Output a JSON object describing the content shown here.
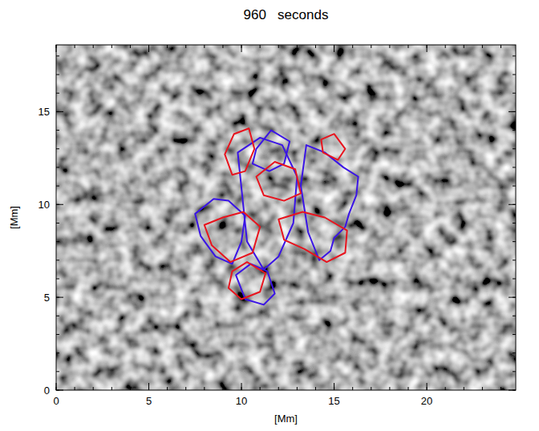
{
  "chart_data": {
    "type": "contour",
    "title": "960   seconds",
    "x_label": "[Mm]",
    "y_label": "[Mm]",
    "xlim": [
      0,
      24.8
    ],
    "ylim": [
      0,
      18.6
    ],
    "xticks": [
      0,
      5,
      10,
      15,
      20
    ],
    "yticks": [
      0,
      5,
      10,
      15
    ],
    "series": [
      {
        "color": "#3a14e6",
        "line_style": "solid",
        "x": [
          13.5,
          14.5,
          15.5,
          16.3,
          16.2,
          15.8,
          15.6,
          15.0,
          14.8,
          14.2,
          13.6,
          13.2
        ],
        "y": [
          13.2,
          12.8,
          12.0,
          11.5,
          10.5,
          9.5,
          8.8,
          8.2,
          7.5,
          7.0,
          8.5,
          11.0
        ]
      },
      {
        "color": "#3a14e6",
        "line_style": "solid",
        "x": [
          7.5,
          8.5,
          9.3,
          10.2,
          10.0,
          9.5,
          8.6,
          7.8
        ],
        "y": [
          9.5,
          10.3,
          10.2,
          9.4,
          8.0,
          6.8,
          7.2,
          8.3
        ]
      },
      {
        "color": "#3a14e6",
        "line_style": "solid",
        "x": [
          9.8,
          11.0,
          12.2,
          13.0,
          12.8,
          12.0,
          11.2,
          10.3
        ],
        "y": [
          12.8,
          13.6,
          13.2,
          11.5,
          9.0,
          7.2,
          6.5,
          8.0
        ]
      },
      {
        "color": "#3a14e6",
        "line_style": "solid",
        "x": [
          9.7,
          10.5,
          11.4,
          11.8,
          11.2,
          10.2
        ],
        "y": [
          6.2,
          6.8,
          6.4,
          5.2,
          4.6,
          4.9
        ]
      },
      {
        "color": "#3a14e6",
        "line_style": "solid",
        "x": [
          10.8,
          11.6,
          12.6,
          12.3,
          11.5,
          10.6
        ],
        "y": [
          13.0,
          14.0,
          13.4,
          12.2,
          11.8,
          12.2
        ]
      },
      {
        "color": "#e8141e",
        "line_style": "solid",
        "x": [
          9.6,
          10.4,
          10.7,
          10.2,
          9.5,
          9.1
        ],
        "y": [
          13.8,
          14.1,
          13.0,
          11.8,
          11.6,
          12.7
        ]
      },
      {
        "color": "#e8141e",
        "line_style": "solid",
        "x": [
          14.3,
          15.0,
          15.6,
          15.2,
          14.4
        ],
        "y": [
          13.5,
          13.8,
          13.0,
          12.4,
          12.8
        ]
      },
      {
        "color": "#e8141e",
        "line_style": "solid",
        "x": [
          8.0,
          9.0,
          10.1,
          11.0,
          10.6,
          9.4,
          8.4
        ],
        "y": [
          8.9,
          9.3,
          9.6,
          8.8,
          7.4,
          6.9,
          7.8
        ]
      },
      {
        "color": "#e8141e",
        "line_style": "solid",
        "x": [
          12.0,
          13.3,
          14.5,
          15.7,
          15.6,
          14.6,
          13.4,
          12.3
        ],
        "y": [
          9.2,
          9.6,
          9.3,
          8.6,
          7.4,
          6.9,
          7.6,
          8.1
        ]
      },
      {
        "color": "#e8141e",
        "line_style": "solid",
        "x": [
          9.5,
          10.3,
          11.3,
          11.0,
          10.0,
          9.3
        ],
        "y": [
          6.4,
          6.9,
          6.3,
          5.3,
          4.9,
          5.5
        ]
      },
      {
        "color": "#e8141e",
        "line_style": "solid",
        "x": [
          10.8,
          11.8,
          12.9,
          13.2,
          12.3,
          11.2
        ],
        "y": [
          11.5,
          12.3,
          11.9,
          10.6,
          10.2,
          10.5
        ]
      }
    ]
  }
}
